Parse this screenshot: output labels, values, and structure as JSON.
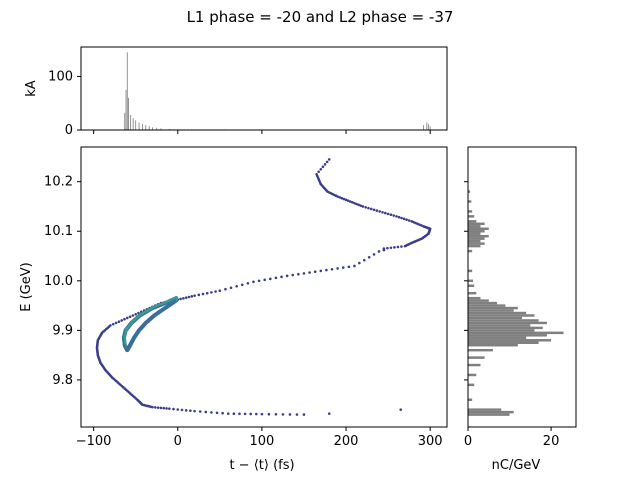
{
  "chart_data": {
    "type": "scatter",
    "title": "L1 phase = -20 and L2 phase = -37",
    "colors": {
      "hist": "#808080",
      "scatter_outer": "#3b3f8a",
      "scatter_mid": "#3b6f9a",
      "scatter_core": "#3aa28e"
    },
    "current_panel": {
      "type": "bar",
      "ylabel": "kA",
      "ylim": [
        0,
        155
      ],
      "yticks": [
        "0",
        "100"
      ],
      "ytick_values": [
        0,
        100
      ],
      "peaks": [
        {
          "t": -60,
          "kA": 145
        },
        {
          "t": -61.5,
          "kA": 75
        },
        {
          "t": -58.5,
          "kA": 60
        },
        {
          "t": -63,
          "kA": 32
        },
        {
          "t": -56,
          "kA": 28
        },
        {
          "t": -53,
          "kA": 22
        },
        {
          "t": -50,
          "kA": 18
        },
        {
          "t": -46,
          "kA": 14
        },
        {
          "t": -42,
          "kA": 11
        },
        {
          "t": -38,
          "kA": 9
        },
        {
          "t": -34,
          "kA": 7
        },
        {
          "t": -30,
          "kA": 5
        },
        {
          "t": -25,
          "kA": 4
        },
        {
          "t": -20,
          "kA": 3
        },
        {
          "t": -10,
          "kA": 2
        },
        {
          "t": 292,
          "kA": 9
        },
        {
          "t": 296,
          "kA": 14
        },
        {
          "t": 298,
          "kA": 11
        },
        {
          "t": 300,
          "kA": 7
        }
      ]
    },
    "main_panel": {
      "xlabel": "t − ⟨t⟩ (fs)",
      "ylabel": "E (GeV)",
      "xlim": [
        -115,
        320
      ],
      "ylim": [
        9.705,
        10.27
      ],
      "xticks": [
        "−100",
        "0",
        "100",
        "200",
        "300"
      ],
      "xtick_values": [
        -100,
        0,
        100,
        200,
        300
      ],
      "yticks": [
        "9.8",
        "9.9",
        "10.0",
        "10.1",
        "10.2"
      ],
      "ytick_values": [
        9.8,
        9.9,
        10.0,
        10.1,
        10.2
      ],
      "curve_points": [
        [
          180,
          10.245
        ],
        [
          165,
          10.215
        ],
        [
          170,
          10.195
        ],
        [
          178,
          10.18
        ],
        [
          190,
          10.17
        ],
        [
          205,
          10.16
        ],
        [
          220,
          10.15
        ],
        [
          240,
          10.14
        ],
        [
          260,
          10.13
        ],
        [
          278,
          10.12
        ],
        [
          292,
          10.11
        ],
        [
          300,
          10.105
        ],
        [
          298,
          10.095
        ],
        [
          290,
          10.085
        ],
        [
          280,
          10.078
        ],
        [
          270,
          10.07
        ],
        [
          245,
          10.065
        ],
        [
          210,
          10.03
        ],
        [
          170,
          10.02
        ],
        [
          130,
          10.01
        ],
        [
          90,
          9.998
        ],
        [
          50,
          9.98
        ],
        [
          20,
          9.97
        ],
        [
          0,
          9.962
        ],
        [
          -20,
          9.955
        ],
        [
          -40,
          9.94
        ],
        [
          -60,
          9.925
        ],
        [
          -80,
          9.91
        ],
        [
          -90,
          9.895
        ],
        [
          -95,
          9.88
        ],
        [
          -96,
          9.865
        ],
        [
          -95,
          9.85
        ],
        [
          -92,
          9.835
        ],
        [
          -86,
          9.82
        ],
        [
          -78,
          9.805
        ],
        [
          -68,
          9.79
        ],
        [
          -58,
          9.775
        ],
        [
          -48,
          9.76
        ],
        [
          -42,
          9.75
        ],
        [
          -30,
          9.745
        ],
        [
          -10,
          9.742
        ],
        [
          20,
          9.737
        ],
        [
          60,
          9.732
        ],
        [
          100,
          9.731
        ],
        [
          150,
          9.73
        ]
      ],
      "inner_branch": [
        [
          -2,
          9.965
        ],
        [
          -15,
          9.955
        ],
        [
          -30,
          9.945
        ],
        [
          -45,
          9.93
        ],
        [
          -55,
          9.915
        ],
        [
          -62,
          9.9
        ],
        [
          -64,
          9.885
        ],
        [
          -63,
          9.87
        ],
        [
          -60,
          9.86
        ],
        [
          -56,
          9.872
        ],
        [
          -52,
          9.885
        ],
        [
          -46,
          9.9
        ],
        [
          -38,
          9.915
        ],
        [
          -28,
          9.93
        ],
        [
          -15,
          9.945
        ],
        [
          -2,
          9.96
        ]
      ],
      "outliers": [
        [
          265,
          9.74
        ],
        [
          180,
          9.732
        ],
        [
          245,
          10.062
        ]
      ]
    },
    "energy_panel": {
      "type": "barh",
      "xlabel": "nC/GeV",
      "xlim": [
        0,
        26
      ],
      "xticks": [
        "0",
        "20"
      ],
      "xtick_values": [
        0,
        20
      ],
      "bins": [
        {
          "E": 9.73,
          "v": 10
        },
        {
          "E": 9.735,
          "v": 11
        },
        {
          "E": 9.74,
          "v": 8
        },
        {
          "E": 9.76,
          "v": 1
        },
        {
          "E": 9.79,
          "v": 1.5
        },
        {
          "E": 9.81,
          "v": 2
        },
        {
          "E": 9.83,
          "v": 3
        },
        {
          "E": 9.845,
          "v": 4
        },
        {
          "E": 9.86,
          "v": 6
        },
        {
          "E": 9.87,
          "v": 12
        },
        {
          "E": 9.875,
          "v": 17
        },
        {
          "E": 9.88,
          "v": 20
        },
        {
          "E": 9.885,
          "v": 14
        },
        {
          "E": 9.89,
          "v": 19
        },
        {
          "E": 9.895,
          "v": 23
        },
        {
          "E": 9.9,
          "v": 16
        },
        {
          "E": 9.905,
          "v": 18
        },
        {
          "E": 9.91,
          "v": 15
        },
        {
          "E": 9.915,
          "v": 19
        },
        {
          "E": 9.92,
          "v": 17
        },
        {
          "E": 9.925,
          "v": 13
        },
        {
          "E": 9.93,
          "v": 16
        },
        {
          "E": 9.935,
          "v": 14
        },
        {
          "E": 9.94,
          "v": 11
        },
        {
          "E": 9.945,
          "v": 12
        },
        {
          "E": 9.95,
          "v": 9
        },
        {
          "E": 9.955,
          "v": 7
        },
        {
          "E": 9.96,
          "v": 5
        },
        {
          "E": 9.965,
          "v": 3
        },
        {
          "E": 9.975,
          "v": 2
        },
        {
          "E": 9.99,
          "v": 1.5
        },
        {
          "E": 10.0,
          "v": 1.2
        },
        {
          "E": 10.02,
          "v": 1
        },
        {
          "E": 10.06,
          "v": 1
        },
        {
          "E": 10.07,
          "v": 3
        },
        {
          "E": 10.075,
          "v": 4
        },
        {
          "E": 10.08,
          "v": 3
        },
        {
          "E": 10.085,
          "v": 4
        },
        {
          "E": 10.09,
          "v": 5
        },
        {
          "E": 10.095,
          "v": 3
        },
        {
          "E": 10.1,
          "v": 4
        },
        {
          "E": 10.105,
          "v": 5
        },
        {
          "E": 10.11,
          "v": 3
        },
        {
          "E": 10.115,
          "v": 4
        },
        {
          "E": 10.12,
          "v": 2
        },
        {
          "E": 10.13,
          "v": 1.5
        },
        {
          "E": 10.14,
          "v": 1
        },
        {
          "E": 10.16,
          "v": 0.8
        },
        {
          "E": 10.18,
          "v": 0.5
        }
      ]
    }
  }
}
